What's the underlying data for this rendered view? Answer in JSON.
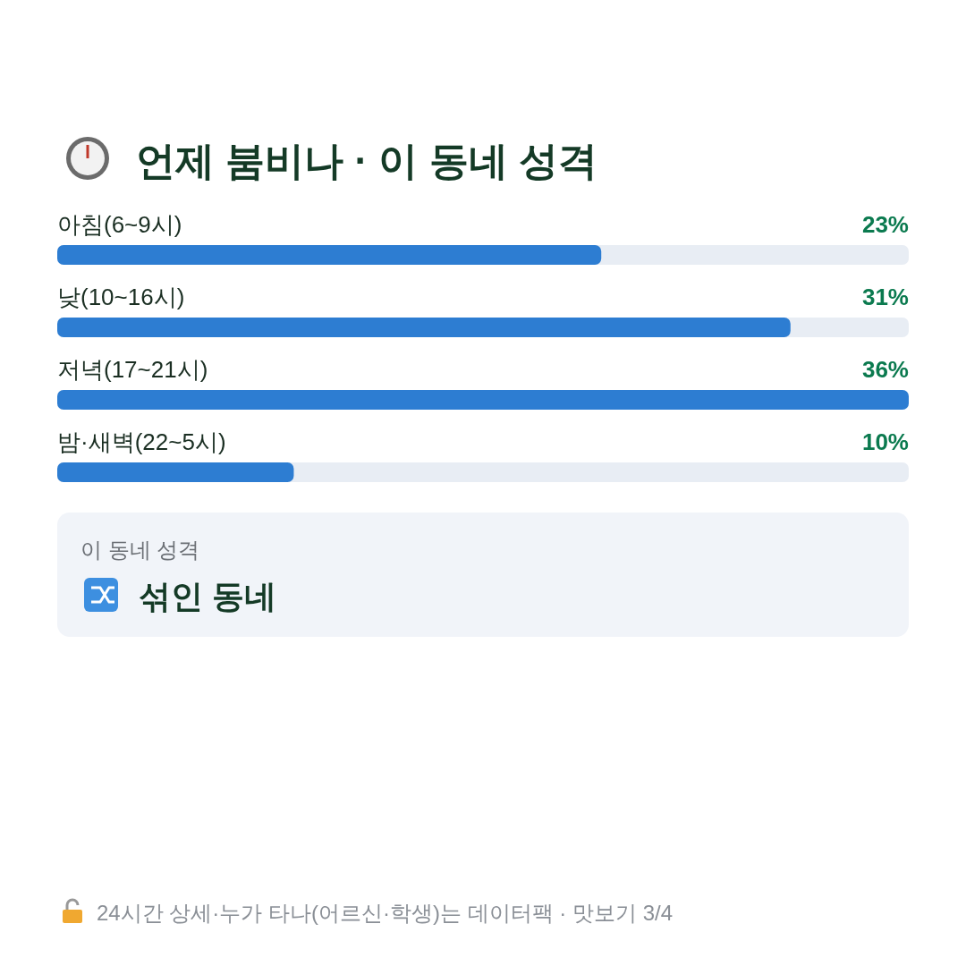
{
  "chart_data": {
    "type": "bar",
    "orientation": "horizontal",
    "title": "언제 붐비나 · 이 동네 성격",
    "categories": [
      "아침(6~9시)",
      "낮(10~16시)",
      "저녁(17~21시)",
      "밤·새벽(22~5시)"
    ],
    "values": [
      23,
      31,
      36,
      10
    ],
    "color": "#2d7dd2",
    "value_labels": [
      "23%",
      "31%",
      "36%",
      "10%"
    ],
    "annotations": [
      "이 동네 성격",
      "섞인 동네",
      "24시간 상세·누가 타나(어르신·학생)는 데이터팩 · 맛보기 3/4"
    ]
  }
}
